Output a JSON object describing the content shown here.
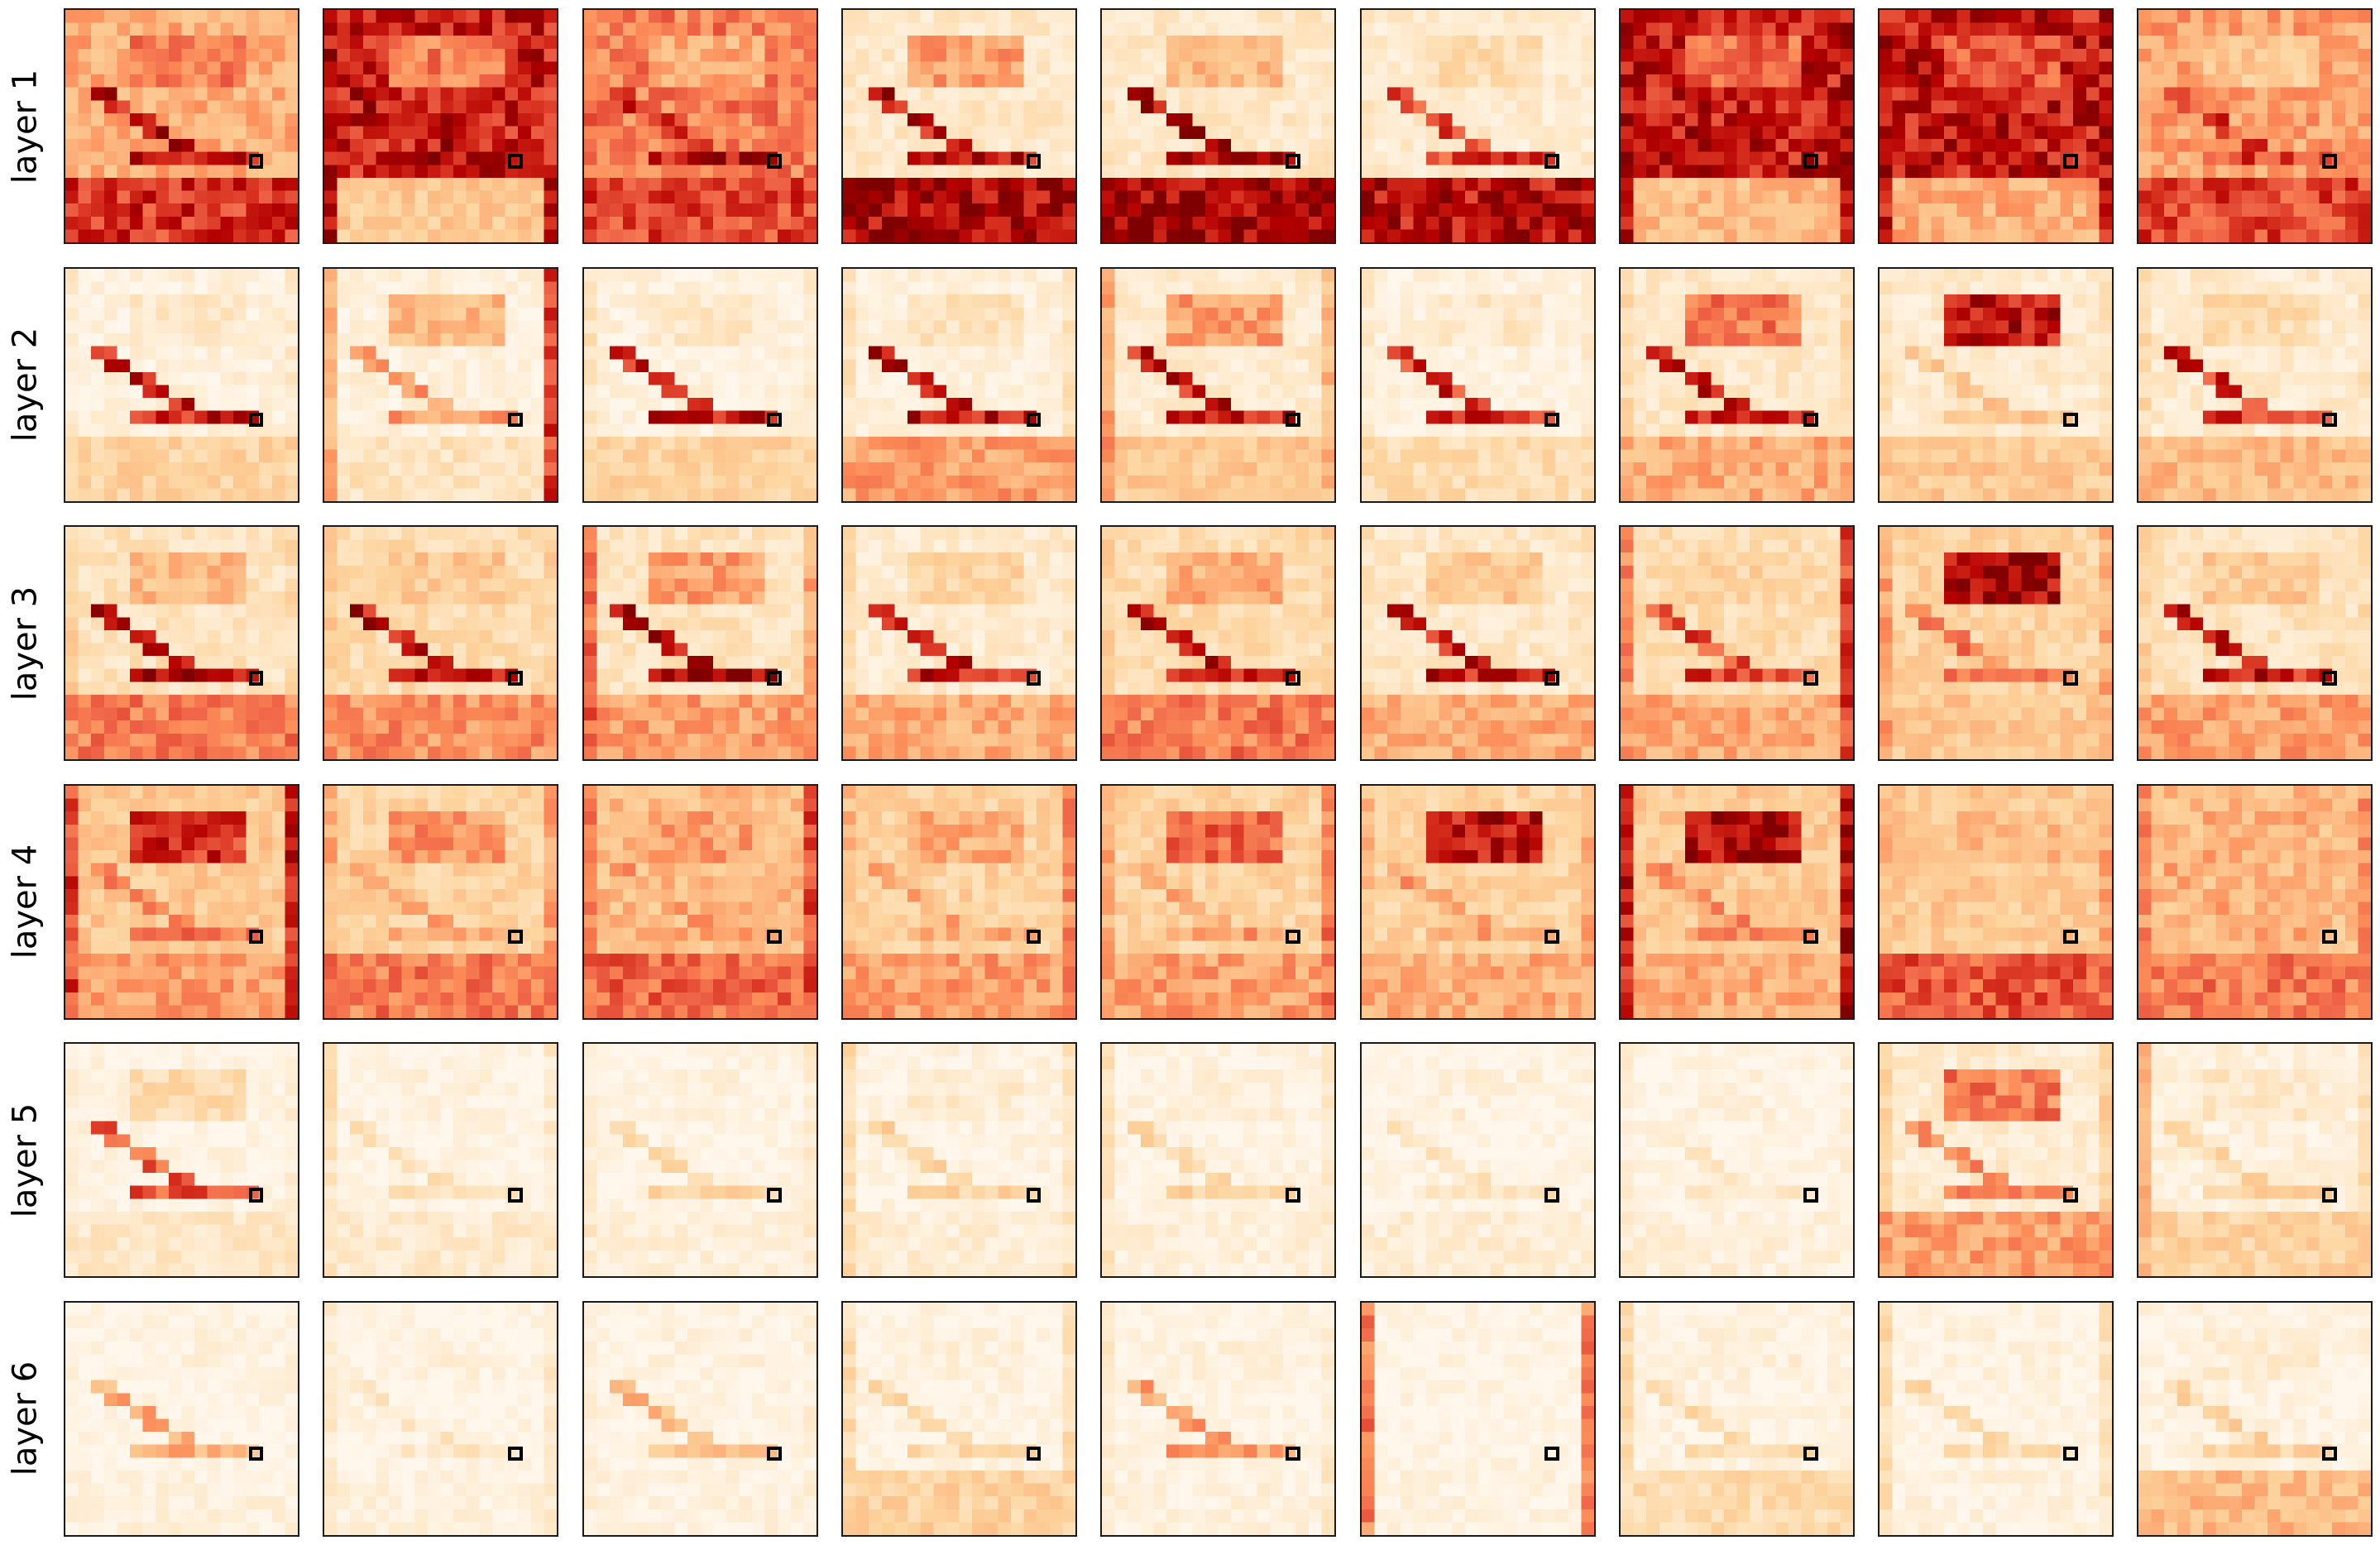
{
  "chart_data": {
    "type": "heatmap",
    "title": "",
    "grid_size": 18,
    "rows": 6,
    "columns": 9,
    "colormap": "OrRd",
    "colormap_stops": [
      "#fff7ec",
      "#fee8c8",
      "#fdd49e",
      "#fdbb84",
      "#fc8d59",
      "#ef6548",
      "#d7301f",
      "#b30000",
      "#7f0000"
    ],
    "row_labels": [
      "layer 1",
      "layer 2",
      "layer 3",
      "layer 4",
      "layer 5",
      "layer 6"
    ],
    "query_cell": {
      "row": 11,
      "col": 14
    },
    "panels": [
      [
        {
          "bg": 0.4,
          "text": 0.55,
          "trace": 0.85,
          "bottom": 0.75,
          "left": 0.4,
          "right": 0.4
        },
        {
          "bg": 0.8,
          "text": 0.55,
          "trace": 0.85,
          "bottom": 0.3,
          "left": 0.85,
          "right": 0.8
        },
        {
          "bg": 0.55,
          "text": 0.4,
          "trace": 0.85,
          "bottom": 0.7,
          "left": 0.6,
          "right": 0.55
        },
        {
          "bg": 0.12,
          "text": 0.45,
          "trace": 0.85,
          "bottom": 0.9,
          "left": 0.15,
          "right": 0.1
        },
        {
          "bg": 0.12,
          "text": 0.35,
          "trace": 0.9,
          "bottom": 0.92,
          "left": 0.15,
          "right": 0.1
        },
        {
          "bg": 0.1,
          "text": 0.2,
          "trace": 0.7,
          "bottom": 0.85,
          "left": 0.12,
          "right": 0.1
        },
        {
          "bg": 0.82,
          "text": 0.6,
          "trace": 0.75,
          "bottom": 0.35,
          "left": 0.85,
          "right": 0.85
        },
        {
          "bg": 0.82,
          "text": 0.65,
          "trace": 0.8,
          "bottom": 0.4,
          "left": 0.85,
          "right": 0.8
        },
        {
          "bg": 0.45,
          "text": 0.3,
          "trace": 0.7,
          "bottom": 0.7,
          "left": 0.45,
          "right": 0.45
        }
      ],
      [
        {
          "bg": 0.06,
          "text": 0.12,
          "trace": 0.8,
          "bottom": 0.25,
          "left": 0.1,
          "right": 0.1
        },
        {
          "bg": 0.06,
          "text": 0.35,
          "trace": 0.45,
          "bottom": 0.15,
          "left": 0.4,
          "right": 0.7
        },
        {
          "bg": 0.05,
          "text": 0.12,
          "trace": 0.8,
          "bottom": 0.25,
          "left": 0.15,
          "right": 0.1
        },
        {
          "bg": 0.06,
          "text": 0.15,
          "trace": 0.85,
          "bottom": 0.45,
          "left": 0.15,
          "right": 0.15
        },
        {
          "bg": 0.1,
          "text": 0.45,
          "trace": 0.8,
          "bottom": 0.3,
          "left": 0.45,
          "right": 0.35
        },
        {
          "bg": 0.05,
          "text": 0.12,
          "trace": 0.75,
          "bottom": 0.2,
          "left": 0.1,
          "right": 0.1
        },
        {
          "bg": 0.12,
          "text": 0.55,
          "trace": 0.8,
          "bottom": 0.4,
          "left": 0.2,
          "right": 0.2
        },
        {
          "bg": 0.1,
          "text": 0.85,
          "trace": 0.3,
          "bottom": 0.3,
          "left": 0.15,
          "right": 0.15
        },
        {
          "bg": 0.1,
          "text": 0.2,
          "trace": 0.75,
          "bottom": 0.35,
          "left": 0.2,
          "right": 0.15
        }
      ],
      [
        {
          "bg": 0.15,
          "text": 0.35,
          "trace": 0.9,
          "bottom": 0.55,
          "left": 0.25,
          "right": 0.2
        },
        {
          "bg": 0.2,
          "text": 0.3,
          "trace": 0.85,
          "bottom": 0.5,
          "left": 0.3,
          "right": 0.25
        },
        {
          "bg": 0.15,
          "text": 0.45,
          "trace": 0.9,
          "bottom": 0.45,
          "left": 0.6,
          "right": 0.4
        },
        {
          "bg": 0.1,
          "text": 0.25,
          "trace": 0.8,
          "bottom": 0.4,
          "left": 0.2,
          "right": 0.15
        },
        {
          "bg": 0.2,
          "text": 0.4,
          "trace": 0.85,
          "bottom": 0.55,
          "left": 0.25,
          "right": 0.25
        },
        {
          "bg": 0.12,
          "text": 0.3,
          "trace": 0.8,
          "bottom": 0.4,
          "left": 0.15,
          "right": 0.15
        },
        {
          "bg": 0.2,
          "text": 0.25,
          "trace": 0.7,
          "bottom": 0.4,
          "left": 0.5,
          "right": 0.7
        },
        {
          "bg": 0.25,
          "text": 0.9,
          "trace": 0.55,
          "bottom": 0.3,
          "left": 0.45,
          "right": 0.4
        },
        {
          "bg": 0.15,
          "text": 0.3,
          "trace": 0.8,
          "bottom": 0.45,
          "left": 0.25,
          "right": 0.2
        }
      ],
      [
        {
          "bg": 0.3,
          "text": 0.75,
          "trace": 0.55,
          "bottom": 0.45,
          "left": 0.7,
          "right": 0.8
        },
        {
          "bg": 0.25,
          "text": 0.5,
          "trace": 0.45,
          "bottom": 0.55,
          "left": 0.4,
          "right": 0.45
        },
        {
          "bg": 0.35,
          "text": 0.45,
          "trace": 0.45,
          "bottom": 0.6,
          "left": 0.55,
          "right": 0.7
        },
        {
          "bg": 0.25,
          "text": 0.4,
          "trace": 0.4,
          "bottom": 0.45,
          "left": 0.35,
          "right": 0.5
        },
        {
          "bg": 0.25,
          "text": 0.6,
          "trace": 0.45,
          "bottom": 0.45,
          "left": 0.4,
          "right": 0.55
        },
        {
          "bg": 0.25,
          "text": 0.85,
          "trace": 0.45,
          "bottom": 0.4,
          "left": 0.35,
          "right": 0.4
        },
        {
          "bg": 0.3,
          "text": 0.9,
          "trace": 0.5,
          "bottom": 0.4,
          "left": 0.8,
          "right": 0.85
        },
        {
          "bg": 0.3,
          "text": 0.35,
          "trace": 0.3,
          "bottom": 0.65,
          "left": 0.35,
          "right": 0.4
        },
        {
          "bg": 0.35,
          "text": 0.4,
          "trace": 0.4,
          "bottom": 0.55,
          "left": 0.5,
          "right": 0.5
        }
      ],
      [
        {
          "bg": 0.03,
          "text": 0.2,
          "trace": 0.65,
          "bottom": 0.12,
          "left": 0.08,
          "right": 0.08
        },
        {
          "bg": 0.02,
          "text": 0.05,
          "trace": 0.15,
          "bottom": 0.1,
          "left": 0.15,
          "right": 0.1
        },
        {
          "bg": 0.02,
          "text": 0.05,
          "trace": 0.25,
          "bottom": 0.06,
          "left": 0.1,
          "right": 0.1
        },
        {
          "bg": 0.03,
          "text": 0.1,
          "trace": 0.25,
          "bottom": 0.08,
          "left": 0.2,
          "right": 0.15
        },
        {
          "bg": 0.03,
          "text": 0.08,
          "trace": 0.25,
          "bottom": 0.06,
          "left": 0.15,
          "right": 0.1
        },
        {
          "bg": 0.02,
          "text": 0.06,
          "trace": 0.15,
          "bottom": 0.08,
          "left": 0.04,
          "right": 0.04
        },
        {
          "bg": 0.02,
          "text": 0.05,
          "trace": 0.15,
          "bottom": 0.06,
          "left": 0.08,
          "right": 0.06
        },
        {
          "bg": 0.1,
          "text": 0.55,
          "trace": 0.5,
          "bottom": 0.45,
          "left": 0.25,
          "right": 0.25
        },
        {
          "bg": 0.06,
          "text": 0.12,
          "trace": 0.25,
          "bottom": 0.25,
          "left": 0.35,
          "right": 0.2
        }
      ],
      [
        {
          "bg": 0.02,
          "text": 0.04,
          "trace": 0.4,
          "bottom": 0.05,
          "left": 0.04,
          "right": 0.04
        },
        {
          "bg": 0.02,
          "text": 0.05,
          "trace": 0.12,
          "bottom": 0.05,
          "left": 0.1,
          "right": 0.1
        },
        {
          "bg": 0.02,
          "text": 0.04,
          "trace": 0.35,
          "bottom": 0.04,
          "left": 0.06,
          "right": 0.06
        },
        {
          "bg": 0.03,
          "text": 0.06,
          "trace": 0.2,
          "bottom": 0.25,
          "left": 0.2,
          "right": 0.2
        },
        {
          "bg": 0.02,
          "text": 0.05,
          "trace": 0.45,
          "bottom": 0.05,
          "left": 0.1,
          "right": 0.1
        },
        {
          "bg": 0.02,
          "text": 0.03,
          "trace": 0.03,
          "bottom": 0.04,
          "left": 0.55,
          "right": 0.55
        },
        {
          "bg": 0.03,
          "text": 0.06,
          "trace": 0.2,
          "bottom": 0.2,
          "left": 0.2,
          "right": 0.05
        },
        {
          "bg": 0.02,
          "text": 0.05,
          "trace": 0.2,
          "bottom": 0.05,
          "left": 0.2,
          "right": 0.15
        },
        {
          "bg": 0.03,
          "text": 0.08,
          "trace": 0.25,
          "bottom": 0.35,
          "left": 0.04,
          "right": 0.04
        }
      ]
    ]
  }
}
